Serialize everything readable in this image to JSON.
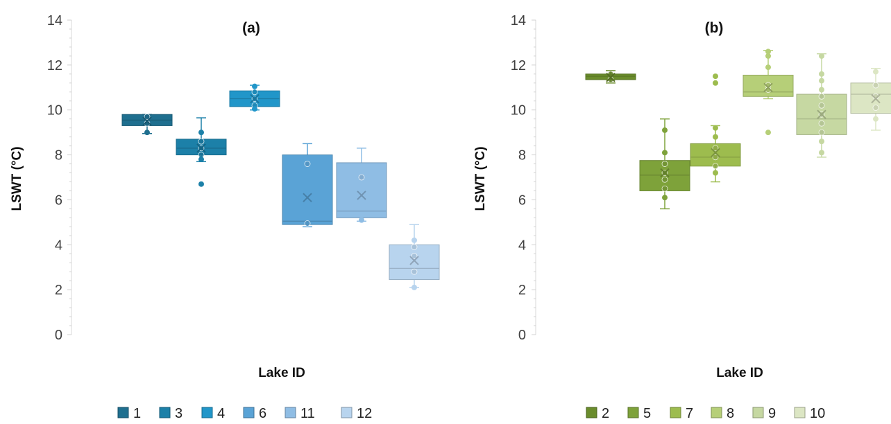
{
  "chart_data": [
    {
      "type": "box",
      "title": "(a)",
      "xlabel": "Lake ID",
      "ylabel": "LSWT (°C)",
      "ylim": [
        0,
        14
      ],
      "yticks": [
        0,
        2,
        4,
        6,
        8,
        10,
        12,
        14
      ],
      "legend_position": "bottom",
      "series": [
        {
          "name": "1",
          "color": "#1f6f8f",
          "min": 8.95,
          "q1": 9.3,
          "median": 9.55,
          "q3": 9.8,
          "max": 9.8,
          "mean": 9.5,
          "points": [
            9.7,
            9.4,
            9.0
          ]
        },
        {
          "name": "3",
          "color": "#1c80a8",
          "min": 7.7,
          "q1": 8.0,
          "median": 8.3,
          "q3": 8.7,
          "max": 9.65,
          "mean": 8.3,
          "points": [
            9.0,
            8.6,
            8.3,
            8.0,
            7.8,
            6.7
          ]
        },
        {
          "name": "4",
          "color": "#2196c9",
          "min": 10.0,
          "q1": 10.15,
          "median": 10.5,
          "q3": 10.85,
          "max": 11.1,
          "mean": 10.5,
          "points": [
            11.05,
            10.8,
            10.5,
            10.2,
            10.05
          ]
        },
        {
          "name": "6",
          "color": "#5aa3d6",
          "min": 4.8,
          "q1": 4.9,
          "median": 5.05,
          "q3": 8.0,
          "max": 8.5,
          "mean": 6.1,
          "points": [
            7.6,
            4.95
          ]
        },
        {
          "name": "11",
          "color": "#8fbde4",
          "min": 5.05,
          "q1": 5.2,
          "median": 5.5,
          "q3": 7.65,
          "max": 8.3,
          "mean": 6.2,
          "points": [
            7.0,
            5.1
          ]
        },
        {
          "name": "12",
          "color": "#b8d4ee",
          "min": 2.1,
          "q1": 2.45,
          "median": 2.95,
          "q3": 4.0,
          "max": 4.9,
          "mean": 3.3,
          "points": [
            4.2,
            3.9,
            3.5,
            2.8,
            2.1
          ]
        }
      ]
    },
    {
      "type": "box",
      "title": "(b)",
      "xlabel": "Lake ID",
      "ylabel": "LSWT (°C)",
      "ylim": [
        0,
        14
      ],
      "yticks": [
        0,
        2,
        4,
        6,
        8,
        10,
        12,
        14
      ],
      "legend_position": "bottom",
      "series": [
        {
          "name": "2",
          "color": "#6a8c2c",
          "min": 11.2,
          "q1": 11.35,
          "median": 11.5,
          "q3": 11.6,
          "max": 11.75,
          "mean": 11.45,
          "points": [
            11.6,
            11.35
          ]
        },
        {
          "name": "5",
          "color": "#7ea23a",
          "min": 5.6,
          "q1": 6.4,
          "median": 7.1,
          "q3": 7.75,
          "max": 9.6,
          "mean": 7.2,
          "points": [
            9.1,
            8.1,
            7.6,
            7.2,
            6.9,
            6.5,
            6.1
          ]
        },
        {
          "name": "7",
          "color": "#9dbc4e",
          "min": 6.8,
          "q1": 7.5,
          "median": 7.9,
          "q3": 8.5,
          "max": 9.3,
          "mean": 8.1,
          "points": [
            11.5,
            11.2,
            9.2,
            8.8,
            8.3,
            7.9,
            7.5,
            7.2
          ]
        },
        {
          "name": "8",
          "color": "#b6cf78",
          "min": 10.5,
          "q1": 10.6,
          "median": 10.8,
          "q3": 11.55,
          "max": 12.65,
          "mean": 11.0,
          "points": [
            12.6,
            12.4,
            11.9,
            11.1,
            10.9,
            9.0
          ]
        },
        {
          "name": "9",
          "color": "#c6d8a2",
          "min": 7.9,
          "q1": 8.9,
          "median": 9.6,
          "q3": 10.7,
          "max": 12.5,
          "mean": 9.8,
          "points": [
            12.4,
            11.6,
            11.3,
            10.9,
            10.6,
            10.2,
            9.8,
            9.4,
            9.0,
            8.6,
            8.1
          ]
        },
        {
          "name": "10",
          "color": "#dce6c4",
          "min": 9.1,
          "q1": 9.85,
          "median": 10.7,
          "q3": 11.2,
          "max": 11.85,
          "mean": 10.5,
          "points": [
            11.7,
            11.1,
            10.6,
            10.1,
            9.6
          ]
        }
      ]
    }
  ]
}
